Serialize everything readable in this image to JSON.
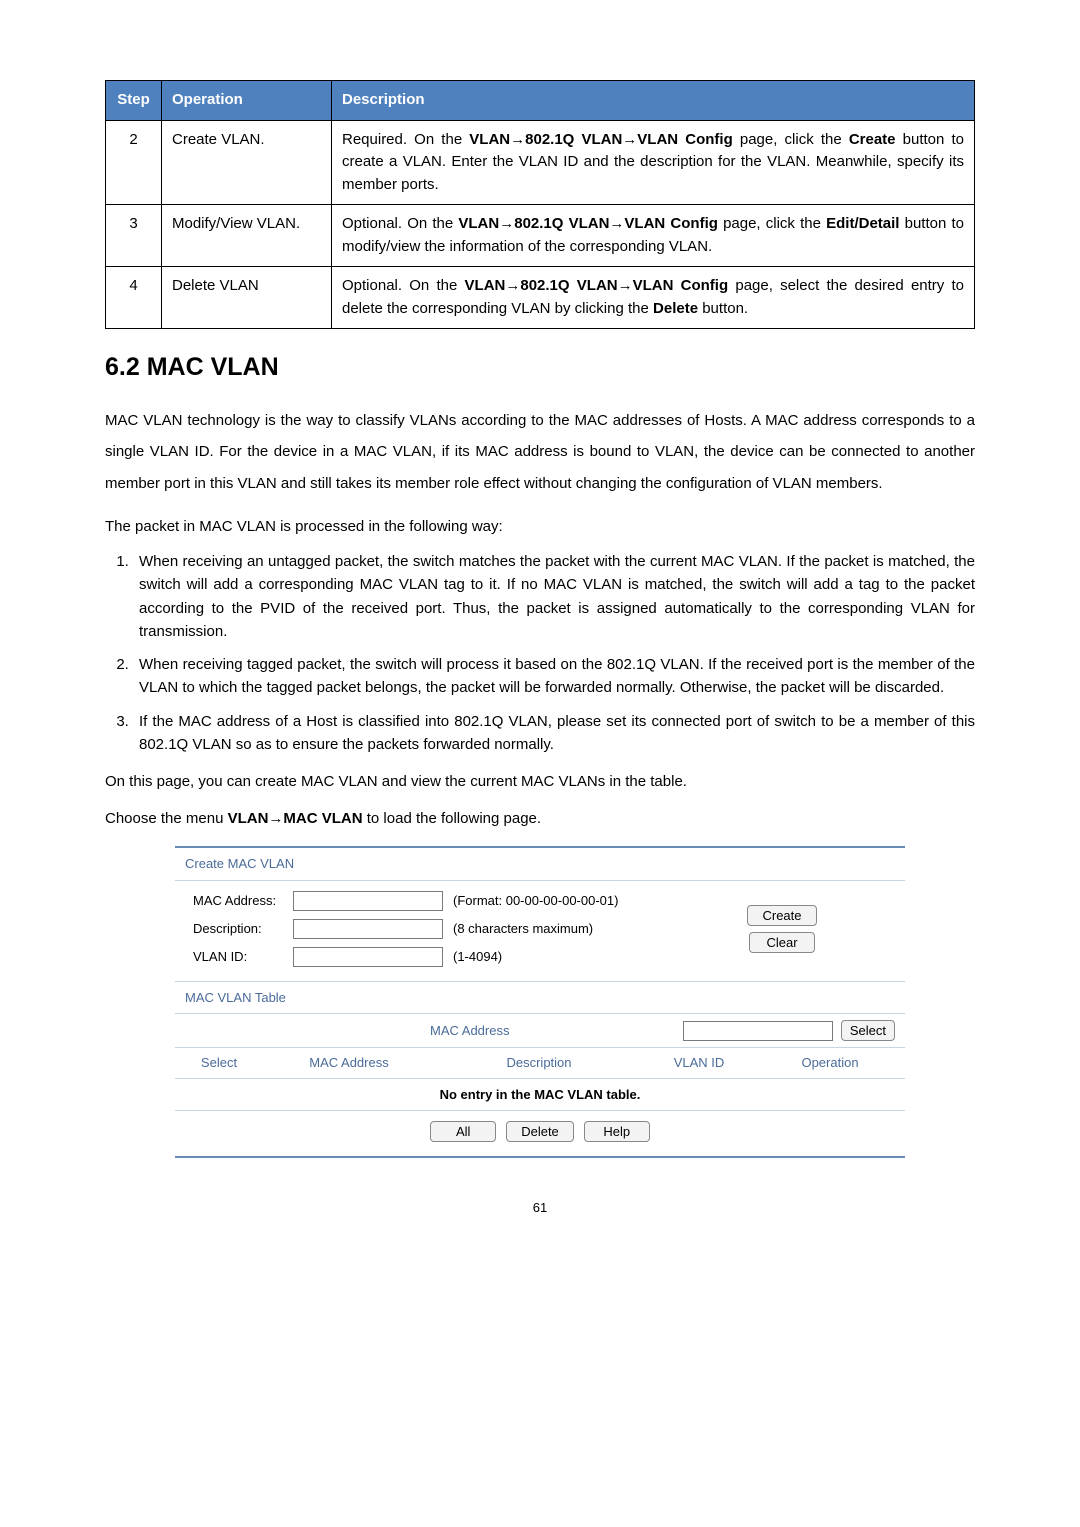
{
  "steps_table": {
    "headers": [
      "Step",
      "Operation",
      "Description"
    ],
    "rows": [
      {
        "step": "2",
        "operation": "Create VLAN.",
        "desc_pre": "Required. On the ",
        "desc_bold1": "VLAN→802.1Q VLAN→VLAN Config",
        "desc_mid1": " page, click the ",
        "desc_bold2": "Create",
        "desc_post": " button to create a VLAN. Enter the VLAN ID and the description for the VLAN. Meanwhile, specify its member ports."
      },
      {
        "step": "3",
        "operation": "Modify/View VLAN.",
        "desc_pre": "Optional. On the ",
        "desc_bold1": "VLAN→802.1Q VLAN→VLAN Config",
        "desc_mid1": " page, click the ",
        "desc_bold2": "Edit/Detail",
        "desc_post": " button to modify/view the information of the corresponding VLAN."
      },
      {
        "step": "4",
        "operation": "Delete VLAN",
        "desc_pre": "Optional. On the ",
        "desc_bold1": "VLAN→802.1Q VLAN→VLAN Config",
        "desc_mid1": " page, select the desired entry to delete the corresponding VLAN by clicking the ",
        "desc_bold2": "Delete",
        "desc_post": " button."
      }
    ]
  },
  "section": {
    "heading": "6.2  MAC VLAN",
    "intro": "MAC VLAN technology is the way to classify VLANs according to the MAC addresses of Hosts. A MAC address corresponds to a single VLAN ID. For the device in a MAC VLAN, if its MAC address is bound to VLAN, the device can be connected to another member port in this VLAN and still takes its member role effect without changing the configuration of VLAN members.",
    "processing_intro": "The packet in MAC VLAN is processed in the following way:",
    "items": [
      "When receiving an untagged packet, the switch matches the packet with the current MAC VLAN. If the packet is matched, the switch will add a corresponding MAC VLAN tag to it. If no MAC VLAN is matched, the switch will add a tag to the packet according to the PVID of the received port. Thus, the packet is assigned automatically to the corresponding VLAN for transmission.",
      "When receiving tagged packet, the switch will process it based on the 802.1Q VLAN. If the received port is the member of the VLAN to which the tagged packet belongs, the packet will be forwarded normally. Otherwise, the packet will be discarded.",
      "If the MAC address of a Host is classified into 802.1Q VLAN, please set its connected port of switch to be a member of this 802.1Q VLAN so as to ensure the packets forwarded normally."
    ],
    "page_note": "On this page, you can create MAC VLAN and view the current MAC VLANs in the table.",
    "menu_pre": "Choose the menu ",
    "menu_bold": "VLAN→MAC VLAN",
    "menu_post": " to load the following page."
  },
  "ui": {
    "create_header": "Create MAC VLAN",
    "mac_label": "MAC Address:",
    "mac_note": "(Format: 00-00-00-00-00-01)",
    "desc_label": "Description:",
    "desc_note": "(8 characters maximum)",
    "vlan_label": "VLAN ID:",
    "vlan_note": "(1-4094)",
    "create_btn": "Create",
    "clear_btn": "Clear",
    "table_header": "MAC VLAN Table",
    "search_label": "MAC Address",
    "select_btn": "Select",
    "cols": {
      "select": "Select",
      "mac": "MAC Address",
      "desc": "Description",
      "vlan": "VLAN ID",
      "op": "Operation"
    },
    "no_entry": "No entry in the MAC VLAN table.",
    "all_btn": "All",
    "delete_btn": "Delete",
    "help_btn": "Help"
  },
  "page_number": "61"
}
